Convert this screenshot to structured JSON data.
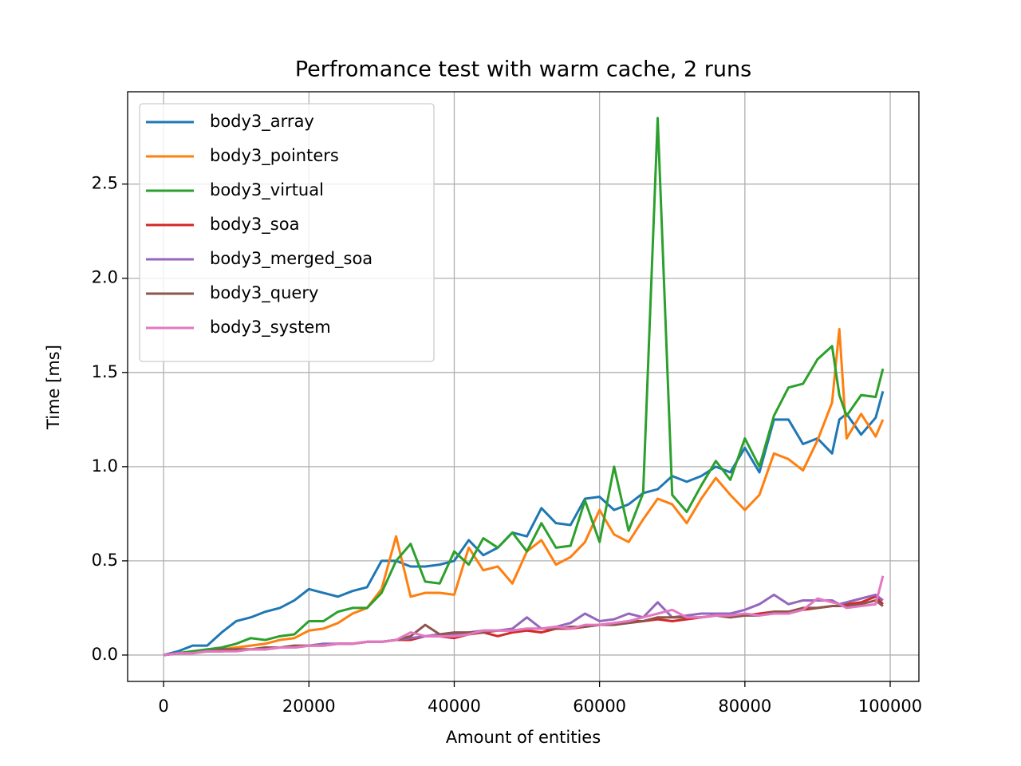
{
  "chart_data": {
    "type": "line",
    "title": "Perfromance test with warm cache, 2 runs",
    "x_label": "Amount of entities",
    "y_label": "Time [ms]",
    "x": [
      0,
      2000,
      4000,
      6000,
      8000,
      10000,
      12000,
      14000,
      16000,
      18000,
      20000,
      22000,
      24000,
      26000,
      28000,
      30000,
      32000,
      34000,
      36000,
      38000,
      40000,
      42000,
      44000,
      46000,
      48000,
      50000,
      52000,
      54000,
      56000,
      58000,
      60000,
      62000,
      64000,
      66000,
      68000,
      70000,
      72000,
      74000,
      76000,
      78000,
      80000,
      82000,
      84000,
      86000,
      88000,
      90000,
      92000,
      93000,
      94000,
      96000,
      98000,
      99000
    ],
    "series": [
      {
        "name": "body3_array",
        "color": "#1f77b4",
        "values": [
          0,
          0.02,
          0.05,
          0.05,
          0.12,
          0.18,
          0.2,
          0.23,
          0.25,
          0.29,
          0.35,
          0.33,
          0.31,
          0.34,
          0.36,
          0.5,
          0.5,
          0.47,
          0.47,
          0.48,
          0.5,
          0.61,
          0.53,
          0.57,
          0.65,
          0.63,
          0.78,
          0.7,
          0.69,
          0.83,
          0.84,
          0.77,
          0.8,
          0.86,
          0.88,
          0.95,
          0.92,
          0.95,
          1.0,
          0.97,
          1.1,
          0.97,
          1.25,
          1.25,
          1.12,
          1.15,
          1.07,
          1.25,
          1.28,
          1.17,
          1.26,
          1.4
        ]
      },
      {
        "name": "body3_pointers",
        "color": "#ff7f0e",
        "values": [
          0,
          0.01,
          0.02,
          0.03,
          0.03,
          0.04,
          0.05,
          0.06,
          0.08,
          0.09,
          0.13,
          0.14,
          0.17,
          0.22,
          0.25,
          0.35,
          0.63,
          0.31,
          0.33,
          0.33,
          0.32,
          0.57,
          0.45,
          0.47,
          0.38,
          0.55,
          0.61,
          0.48,
          0.52,
          0.6,
          0.77,
          0.64,
          0.6,
          0.72,
          0.83,
          0.8,
          0.7,
          0.83,
          0.94,
          0.85,
          0.77,
          0.85,
          1.07,
          1.04,
          0.98,
          1.14,
          1.34,
          1.73,
          1.15,
          1.28,
          1.16,
          1.25
        ]
      },
      {
        "name": "body3_virtual",
        "color": "#2ca02c",
        "values": [
          0,
          0.01,
          0.02,
          0.03,
          0.04,
          0.06,
          0.09,
          0.08,
          0.1,
          0.11,
          0.18,
          0.18,
          0.23,
          0.25,
          0.25,
          0.33,
          0.5,
          0.59,
          0.39,
          0.38,
          0.55,
          0.48,
          0.62,
          0.57,
          0.65,
          0.55,
          0.7,
          0.57,
          0.58,
          0.82,
          0.6,
          1.0,
          0.66,
          0.86,
          2.85,
          0.85,
          0.76,
          0.9,
          1.03,
          0.93,
          1.15,
          1.0,
          1.27,
          1.42,
          1.44,
          1.57,
          1.64,
          1.38,
          1.27,
          1.38,
          1.37,
          1.52
        ]
      },
      {
        "name": "body3_soa",
        "color": "#d62728",
        "values": [
          0,
          0.01,
          0.01,
          0.02,
          0.02,
          0.03,
          0.03,
          0.03,
          0.04,
          0.04,
          0.05,
          0.05,
          0.06,
          0.06,
          0.07,
          0.07,
          0.08,
          0.08,
          0.1,
          0.1,
          0.09,
          0.11,
          0.12,
          0.1,
          0.12,
          0.13,
          0.12,
          0.14,
          0.14,
          0.15,
          0.16,
          0.17,
          0.18,
          0.18,
          0.19,
          0.18,
          0.19,
          0.2,
          0.21,
          0.21,
          0.21,
          0.22,
          0.23,
          0.23,
          0.24,
          0.25,
          0.26,
          0.26,
          0.27,
          0.28,
          0.31,
          0.27
        ]
      },
      {
        "name": "body3_merged_soa",
        "color": "#9467bd",
        "values": [
          0,
          0.01,
          0.01,
          0.02,
          0.02,
          0.03,
          0.03,
          0.04,
          0.04,
          0.04,
          0.05,
          0.06,
          0.06,
          0.06,
          0.07,
          0.07,
          0.08,
          0.09,
          0.1,
          0.11,
          0.11,
          0.12,
          0.13,
          0.13,
          0.14,
          0.2,
          0.14,
          0.15,
          0.17,
          0.22,
          0.18,
          0.19,
          0.22,
          0.2,
          0.28,
          0.2,
          0.21,
          0.22,
          0.22,
          0.22,
          0.24,
          0.27,
          0.32,
          0.27,
          0.29,
          0.29,
          0.29,
          0.27,
          0.28,
          0.3,
          0.32,
          0.29
        ]
      },
      {
        "name": "body3_query",
        "color": "#8c564b",
        "values": [
          0,
          0.01,
          0.01,
          0.02,
          0.03,
          0.03,
          0.03,
          0.04,
          0.04,
          0.05,
          0.05,
          0.05,
          0.06,
          0.06,
          0.07,
          0.07,
          0.08,
          0.1,
          0.16,
          0.11,
          0.12,
          0.12,
          0.12,
          0.13,
          0.13,
          0.14,
          0.14,
          0.14,
          0.15,
          0.15,
          0.16,
          0.16,
          0.17,
          0.18,
          0.2,
          0.2,
          0.2,
          0.2,
          0.21,
          0.2,
          0.21,
          0.21,
          0.23,
          0.23,
          0.25,
          0.25,
          0.26,
          0.26,
          0.26,
          0.27,
          0.29,
          0.26
        ]
      },
      {
        "name": "body3_system",
        "color": "#e377c2",
        "values": [
          0,
          0.01,
          0.01,
          0.02,
          0.02,
          0.02,
          0.03,
          0.03,
          0.04,
          0.04,
          0.05,
          0.05,
          0.06,
          0.06,
          0.07,
          0.07,
          0.08,
          0.12,
          0.1,
          0.1,
          0.1,
          0.11,
          0.13,
          0.13,
          0.13,
          0.14,
          0.14,
          0.15,
          0.14,
          0.16,
          0.16,
          0.17,
          0.18,
          0.2,
          0.22,
          0.24,
          0.2,
          0.2,
          0.21,
          0.21,
          0.22,
          0.21,
          0.22,
          0.22,
          0.24,
          0.3,
          0.28,
          0.27,
          0.25,
          0.26,
          0.27,
          0.42
        ]
      }
    ],
    "xlim": [
      -4950,
      103950
    ],
    "xticks": [
      0,
      20000,
      40000,
      60000,
      80000,
      100000
    ],
    "ylim": [
      -0.14,
      2.99
    ],
    "yticks": [
      {
        "value": 0,
        "label": "0.0"
      },
      0.5,
      {
        "value": 1,
        "label": "1.0"
      },
      1.5,
      {
        "value": 2,
        "label": "2.0"
      },
      2.5
    ],
    "grid": true,
    "legend": "upper left"
  }
}
